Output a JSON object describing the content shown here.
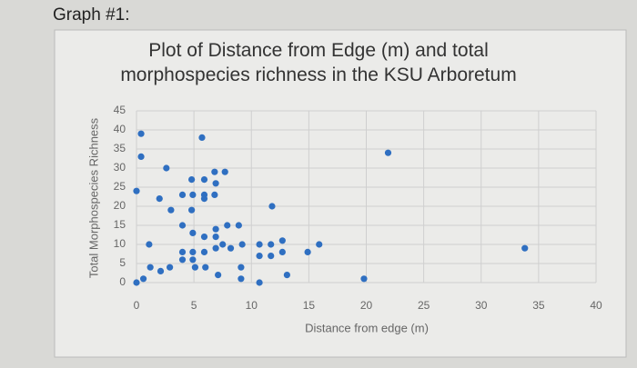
{
  "heading": "Graph #1:",
  "chart_data": {
    "type": "scatter",
    "title": "Plot of Distance from Edge (m) and total morphospecies richness in the KSU Arboretum",
    "x_label": "Distance from edge (m)",
    "y_label": "Total Morphospecies Richness",
    "color": "#2f6fc1",
    "x": [
      0.4,
      0.4,
      0,
      2.6,
      5.7,
      21.9,
      33.8,
      19.8,
      15.9,
      14.9,
      11.8,
      13.1,
      10.7,
      6.8,
      7.7,
      4.8,
      5.9,
      6.9,
      4,
      4.9,
      5.9,
      6.8,
      2,
      5.9,
      1.1,
      3,
      4.8,
      7.9,
      8.9,
      4,
      6.9,
      5.9,
      4.9,
      6.9,
      7.5,
      8.2,
      9.2,
      10.7,
      11.7,
      12.7,
      12.7,
      11.7,
      10.7,
      4,
      4.9,
      4,
      4.9,
      5.9,
      6.9,
      5.1,
      6,
      1.2,
      2.1,
      2.9,
      0,
      0.6,
      7.1,
      9.1,
      9.1
    ],
    "values": [
      39,
      33,
      24,
      30,
      38,
      34,
      9,
      1,
      10,
      8,
      20,
      2,
      0,
      29,
      29,
      27,
      27,
      26,
      23,
      23,
      23,
      23,
      22,
      22,
      10,
      19,
      19,
      15,
      15,
      15,
      14,
      12,
      13,
      12,
      10,
      9,
      10,
      10,
      10,
      11,
      8,
      7,
      7,
      8,
      8,
      6,
      6,
      8,
      9,
      4,
      4,
      4,
      3,
      4,
      0,
      1,
      2,
      4,
      1
    ],
    "xlim": [
      0,
      40
    ],
    "xticks": [
      0,
      5,
      10,
      15,
      20,
      25,
      30,
      35,
      40
    ],
    "ylim": [
      0,
      45
    ],
    "yticks": [
      0,
      5,
      10,
      15,
      20,
      25,
      30,
      35,
      40,
      45
    ],
    "grid": true
  }
}
